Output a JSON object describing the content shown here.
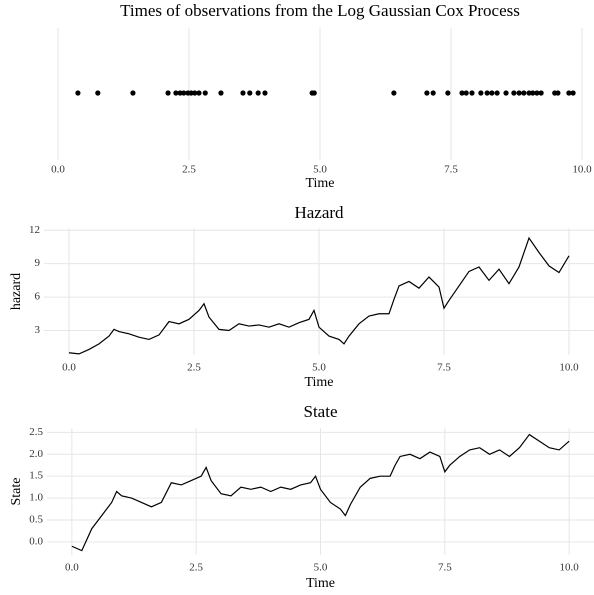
{
  "chart_data": [
    {
      "type": "strip",
      "title": "Times of observations from the Log Gaussian Cox Process",
      "xlabel": "Time",
      "x": [
        0.38,
        0.76,
        1.43,
        2.1,
        2.25,
        2.33,
        2.4,
        2.48,
        2.54,
        2.61,
        2.69,
        2.81,
        3.11,
        3.53,
        3.66,
        3.82,
        3.95,
        4.85,
        4.89,
        6.41,
        7.04,
        7.16,
        7.44,
        7.71,
        7.79,
        7.9,
        8.07,
        8.19,
        8.28,
        8.38,
        8.55,
        8.7,
        8.8,
        8.89,
        8.99,
        9.06,
        9.14,
        9.22,
        9.48,
        9.54,
        9.75,
        9.83
      ],
      "color": "#000000",
      "xlim": [
        0,
        10
      ],
      "xticks": [
        {
          "value": 0,
          "label": "0.0"
        },
        2.5,
        {
          "value": 5,
          "label": "5.0"
        },
        7.5,
        {
          "value": 10,
          "label": "10.0"
        }
      ],
      "grid": true
    },
    {
      "type": "line",
      "title": "Hazard",
      "xlabel": "Time",
      "ylabel": "hazard",
      "x": [
        0,
        0.2,
        0.4,
        0.6,
        0.8,
        0.9,
        1.0,
        1.2,
        1.4,
        1.6,
        1.8,
        2.0,
        2.2,
        2.4,
        2.6,
        2.7,
        2.8,
        3.0,
        3.2,
        3.4,
        3.6,
        3.8,
        4.0,
        4.2,
        4.4,
        4.6,
        4.8,
        4.9,
        5.0,
        5.2,
        5.4,
        5.5,
        5.6,
        5.8,
        6.0,
        6.2,
        6.4,
        6.5,
        6.6,
        6.8,
        7.0,
        7.2,
        7.4,
        7.5,
        7.6,
        7.8,
        8.0,
        8.2,
        8.4,
        8.6,
        8.8,
        9.0,
        9.2,
        9.4,
        9.6,
        9.8,
        10.0
      ],
      "values": [
        1.0,
        0.9,
        1.3,
        1.8,
        2.5,
        3.1,
        2.9,
        2.7,
        2.4,
        2.2,
        2.6,
        3.8,
        3.6,
        4.0,
        4.8,
        5.4,
        4.2,
        3.1,
        3.0,
        3.6,
        3.4,
        3.5,
        3.3,
        3.6,
        3.3,
        3.7,
        4.0,
        4.8,
        3.3,
        2.5,
        2.2,
        1.8,
        2.5,
        3.6,
        4.3,
        4.5,
        4.5,
        5.8,
        7.0,
        7.4,
        6.8,
        7.8,
        6.9,
        5.0,
        5.7,
        7.0,
        8.3,
        8.7,
        7.5,
        8.5,
        7.2,
        8.7,
        11.3,
        10.0,
        8.8,
        8.2,
        9.7
      ],
      "color": "#000000",
      "xlim": [
        -0.5,
        10.5
      ],
      "ylim": [
        0.8,
        12.2
      ],
      "xticks": [
        {
          "value": 0,
          "label": "0.0"
        },
        2.5,
        {
          "value": 5,
          "label": "5.0"
        },
        7.5,
        {
          "value": 10,
          "label": "10.0"
        }
      ],
      "yticks": [
        3,
        6,
        9,
        12
      ],
      "grid": true
    },
    {
      "type": "line",
      "title": "State",
      "xlabel": "Time",
      "ylabel": "State",
      "x": [
        0,
        0.2,
        0.4,
        0.6,
        0.8,
        0.9,
        1.0,
        1.2,
        1.4,
        1.6,
        1.8,
        2.0,
        2.2,
        2.4,
        2.6,
        2.7,
        2.8,
        3.0,
        3.2,
        3.4,
        3.6,
        3.8,
        4.0,
        4.2,
        4.4,
        4.6,
        4.8,
        4.9,
        5.0,
        5.2,
        5.4,
        5.5,
        5.6,
        5.8,
        6.0,
        6.2,
        6.4,
        6.5,
        6.6,
        6.8,
        7.0,
        7.2,
        7.4,
        7.5,
        7.6,
        7.8,
        8.0,
        8.2,
        8.4,
        8.6,
        8.8,
        9.0,
        9.2,
        9.4,
        9.6,
        9.8,
        10.0
      ],
      "values": [
        -0.1,
        -0.2,
        0.3,
        0.6,
        0.9,
        1.15,
        1.05,
        1.0,
        0.9,
        0.8,
        0.9,
        1.35,
        1.3,
        1.4,
        1.5,
        1.7,
        1.4,
        1.1,
        1.05,
        1.25,
        1.2,
        1.25,
        1.15,
        1.25,
        1.2,
        1.3,
        1.35,
        1.5,
        1.2,
        0.9,
        0.75,
        0.6,
        0.85,
        1.25,
        1.45,
        1.5,
        1.5,
        1.75,
        1.95,
        2.0,
        1.9,
        2.05,
        1.95,
        1.6,
        1.75,
        1.95,
        2.1,
        2.15,
        2.0,
        2.1,
        1.95,
        2.15,
        2.45,
        2.3,
        2.15,
        2.1,
        2.3
      ],
      "color": "#000000",
      "xlim": [
        -0.5,
        10.5
      ],
      "ylim": [
        -0.3,
        2.6
      ],
      "xticks": [
        {
          "value": 0,
          "label": "0.0"
        },
        2.5,
        {
          "value": 5,
          "label": "5.0"
        },
        7.5,
        {
          "value": 10,
          "label": "10.0"
        }
      ],
      "yticks": [
        {
          "value": 0,
          "label": "0.0"
        },
        0.5,
        {
          "value": 1,
          "label": "1.0"
        },
        1.5,
        {
          "value": 2,
          "label": "2.0"
        },
        2.5
      ],
      "grid": true
    }
  ]
}
